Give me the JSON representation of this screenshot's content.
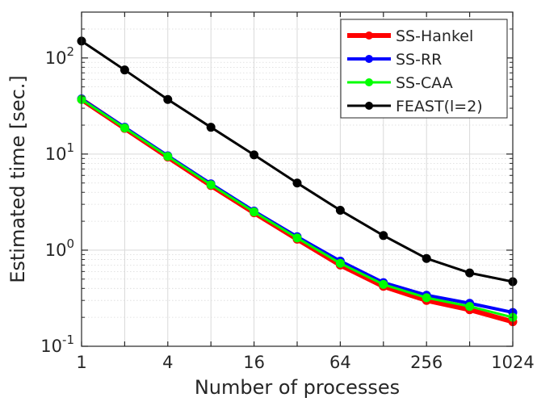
{
  "chart_data": {
    "type": "line",
    "title": "",
    "xlabel": "Number of processes",
    "ylabel": "Estimated time [sec.]",
    "xscale": "log2",
    "yscale": "log10",
    "xlim": [
      1,
      1024
    ],
    "ylim": [
      0.1,
      300
    ],
    "grid": true,
    "x": [
      1,
      2,
      4,
      8,
      16,
      32,
      64,
      128,
      256,
      512,
      1024
    ],
    "xticks": [
      {
        "value": 1,
        "label": "1"
      },
      {
        "value": 4,
        "label": "4"
      },
      {
        "value": 16,
        "label": "16"
      },
      {
        "value": 64,
        "label": "64"
      },
      {
        "value": 256,
        "label": "256"
      },
      {
        "value": 1024,
        "label": "1024"
      }
    ],
    "yticks": [
      {
        "value": 0.1,
        "base": "10",
        "exp": "-1"
      },
      {
        "value": 1,
        "base": "10",
        "exp": "0"
      },
      {
        "value": 10,
        "base": "10",
        "exp": "1"
      },
      {
        "value": 100,
        "base": "10",
        "exp": "2"
      }
    ],
    "legend_position": "top-right",
    "series": [
      {
        "name": "SS-Hankel",
        "color": "#ff0000",
        "width": 6,
        "values": [
          37,
          18.5,
          9.3,
          4.7,
          2.45,
          1.3,
          0.7,
          0.42,
          0.3,
          0.24,
          0.18
        ]
      },
      {
        "name": "SS-RR",
        "color": "#0000ff",
        "width": 4,
        "values": [
          37.5,
          19,
          9.6,
          4.9,
          2.55,
          1.38,
          0.77,
          0.46,
          0.34,
          0.28,
          0.225
        ]
      },
      {
        "name": "SS-CAA",
        "color": "#00ff00",
        "width": 3,
        "values": [
          37,
          18.7,
          9.45,
          4.8,
          2.5,
          1.34,
          0.73,
          0.44,
          0.32,
          0.26,
          0.2
        ]
      },
      {
        "name": "FEAST(l=2)",
        "color": "#000000",
        "width": 3,
        "values": [
          150,
          75,
          37,
          19,
          9.8,
          5,
          2.6,
          1.42,
          0.82,
          0.58,
          0.47
        ]
      }
    ]
  }
}
